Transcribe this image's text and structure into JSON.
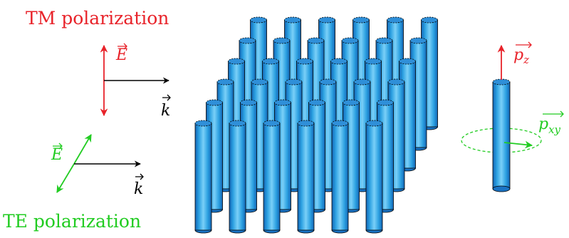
{
  "labels": {
    "tm_title": "TM polarization",
    "te_title": "TE polarization",
    "tm_field": "E",
    "tm_wave": "k",
    "te_field": "E",
    "te_wave": "k",
    "pz_base": "p",
    "pz_sub": "z",
    "pxy_base": "p",
    "pxy_sub": "xy"
  },
  "colors": {
    "tm": "#e8232a",
    "te": "#22cc22",
    "arrow": "#000000",
    "rod_dark": "#1464b4",
    "rod_mid": "#2a9fe0",
    "rod_light": "#7ad0f8",
    "rod_top": "#2f8fd8"
  },
  "lattice": {
    "rows": 6,
    "columns": 6
  }
}
